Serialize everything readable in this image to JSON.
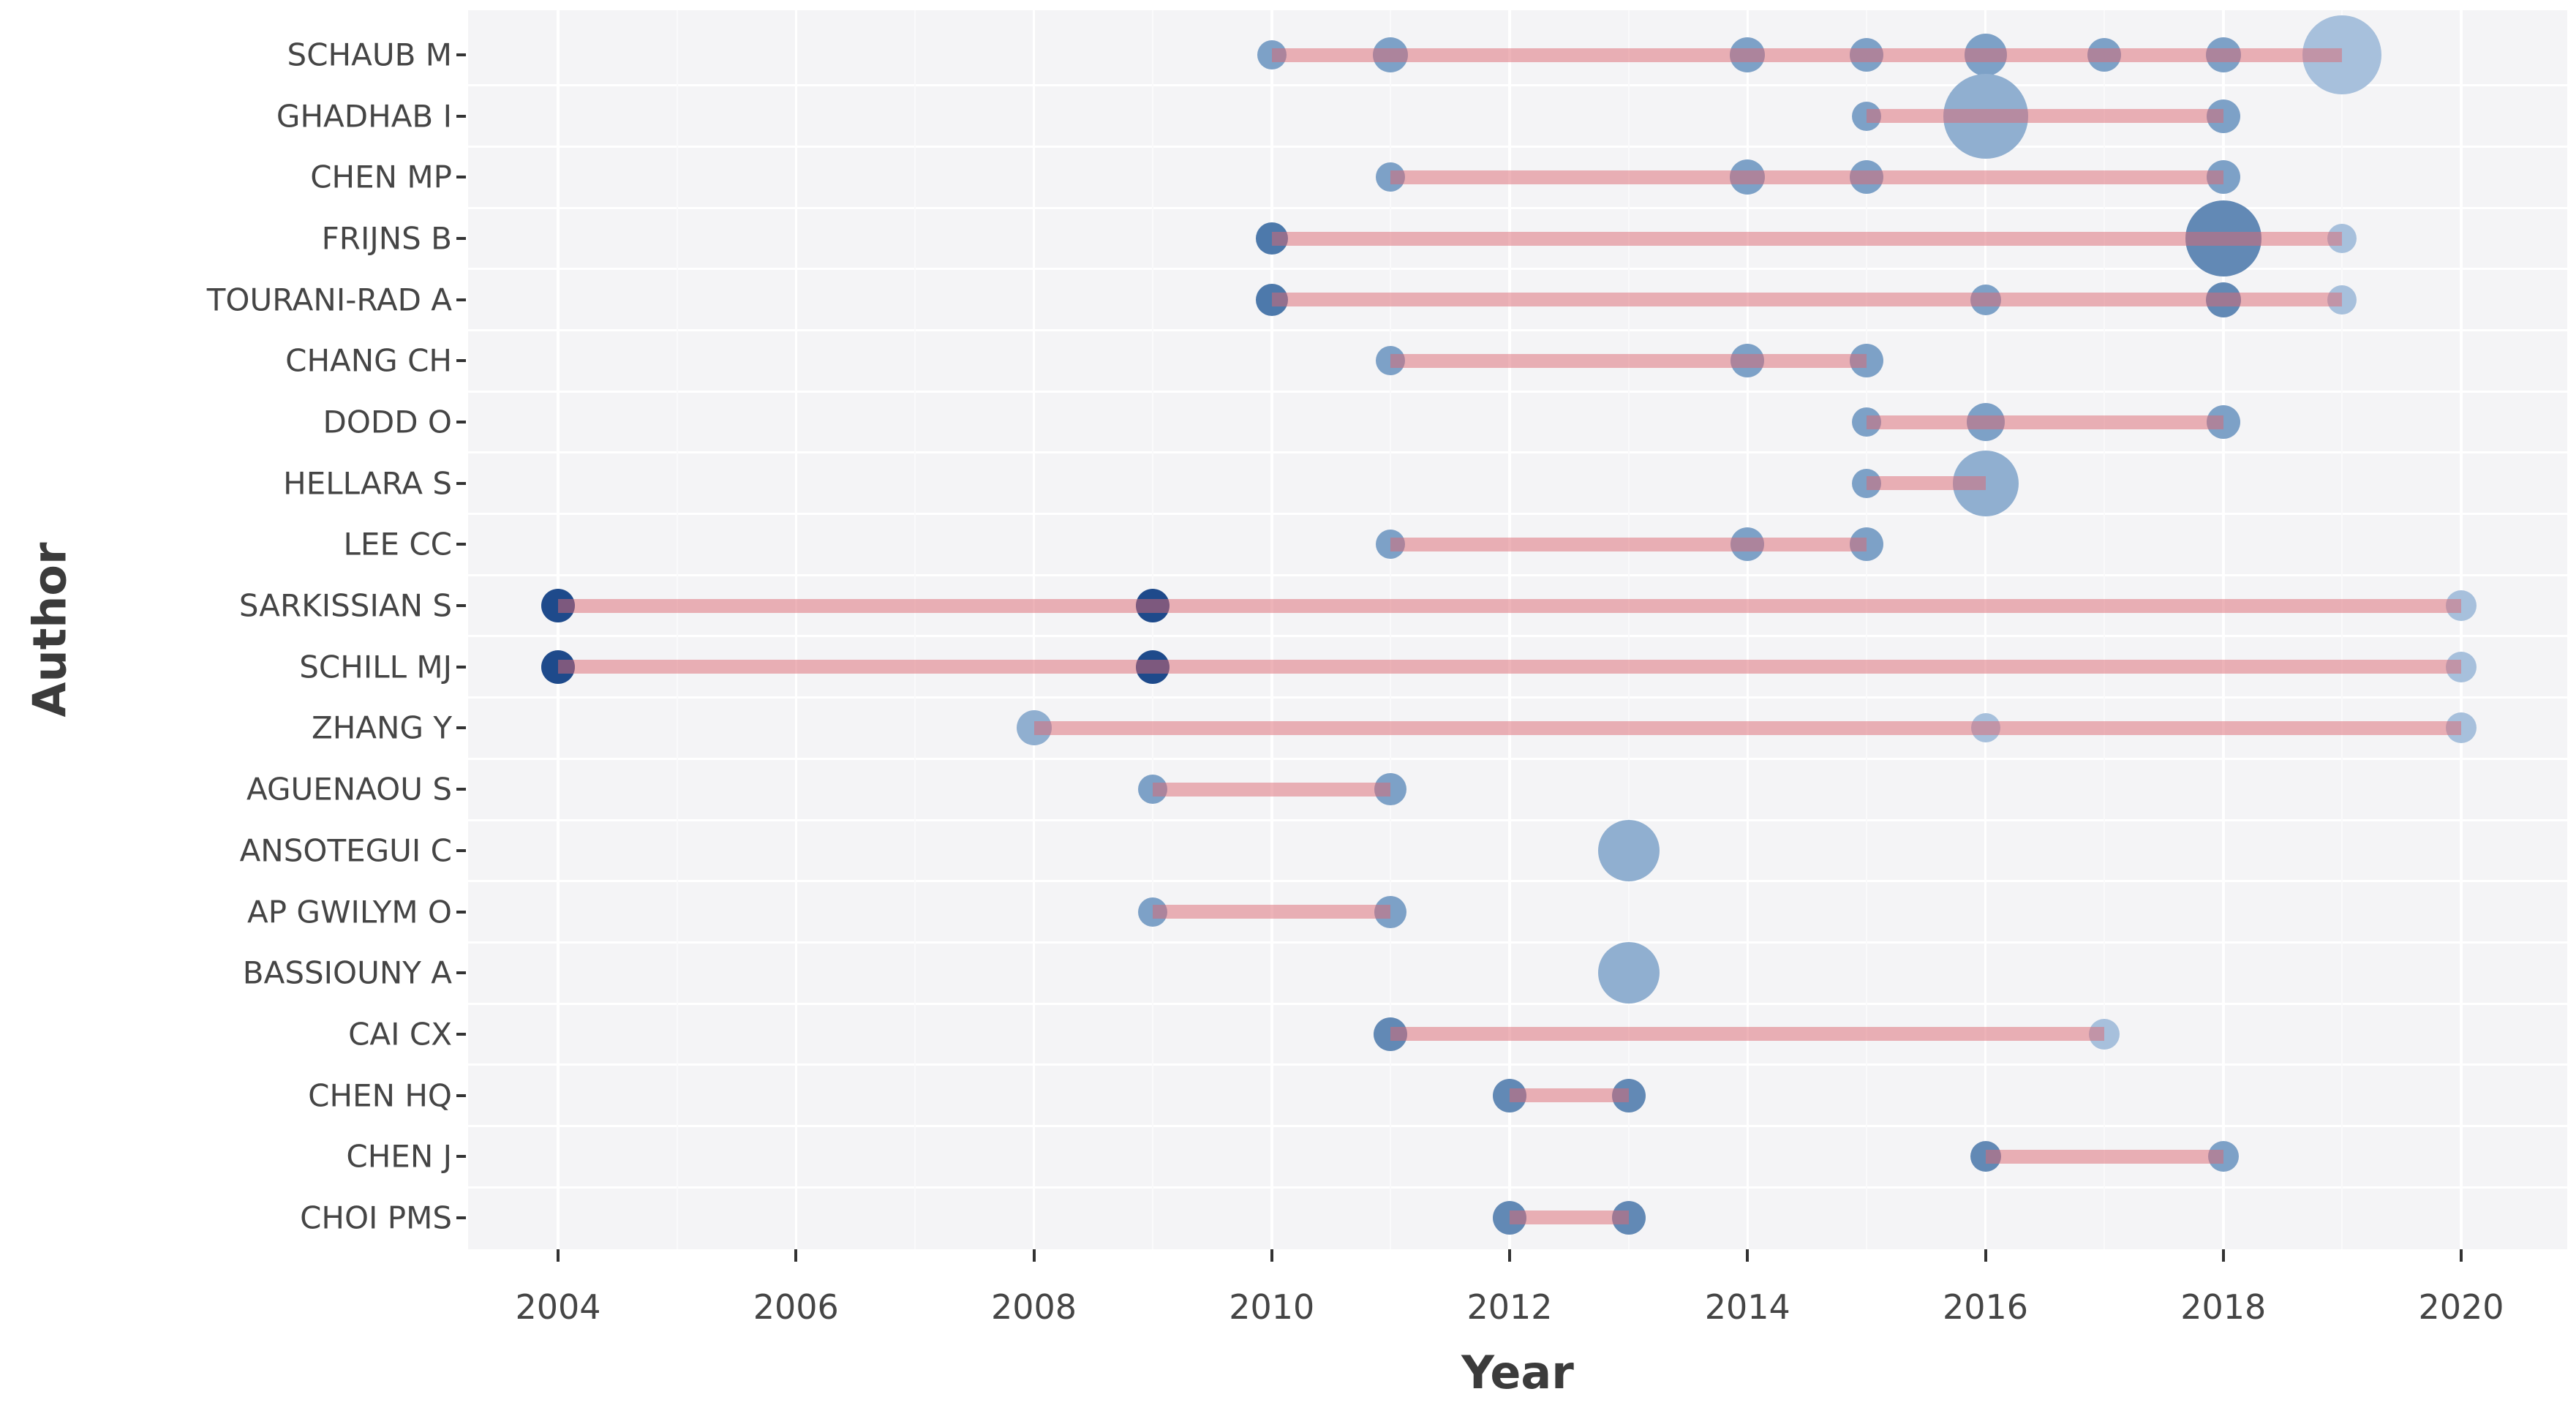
{
  "chart_data": {
    "type": "scatter",
    "subtype": "authors-production-over-time-timeline",
    "xlabel": "Year",
    "ylabel": "Author",
    "x_ticks": [
      2004,
      2006,
      2008,
      2010,
      2012,
      2014,
      2016,
      2018,
      2020
    ],
    "x_minor_ticks": [
      2005,
      2007,
      2009,
      2011,
      2013,
      2015,
      2017,
      2019
    ],
    "x_range": [
      2003.25,
      2020.9
    ],
    "grid": true,
    "legend": "none",
    "panel_bg": "#f4f4f6",
    "line_color_rgba": "rgba(219,104,114,0.50)",
    "palette": {
      "navy": "#1e4a8b",
      "middark": "#4d79ab",
      "medium": "#6289b5",
      "steel": "#7da1c7",
      "light": "#90afd0",
      "xlight": "#a7c0dc"
    },
    "authors": [
      {
        "name": "SCHAUB M",
        "line": [
          2010,
          2019
        ],
        "dots": [
          {
            "year": 2010,
            "r": 20,
            "c": "steel"
          },
          {
            "year": 2011,
            "r": 24,
            "c": "steel"
          },
          {
            "year": 2014,
            "r": 24,
            "c": "steel"
          },
          {
            "year": 2015,
            "r": 23,
            "c": "steel"
          },
          {
            "year": 2016,
            "r": 29,
            "c": "steel"
          },
          {
            "year": 2017,
            "r": 23,
            "c": "steel"
          },
          {
            "year": 2018,
            "r": 24,
            "c": "steel"
          },
          {
            "year": 2019,
            "r": 54,
            "c": "xlight"
          }
        ]
      },
      {
        "name": "GHADHAB I",
        "line": [
          2015,
          2018
        ],
        "dots": [
          {
            "year": 2015,
            "r": 20,
            "c": "steel"
          },
          {
            "year": 2016,
            "r": 58,
            "c": "light"
          },
          {
            "year": 2018,
            "r": 23,
            "c": "steel"
          }
        ]
      },
      {
        "name": "CHEN MP",
        "line": [
          2011,
          2018
        ],
        "dots": [
          {
            "year": 2011,
            "r": 20,
            "c": "steel"
          },
          {
            "year": 2014,
            "r": 24,
            "c": "steel"
          },
          {
            "year": 2015,
            "r": 23,
            "c": "steel"
          },
          {
            "year": 2018,
            "r": 23,
            "c": "steel"
          }
        ]
      },
      {
        "name": "FRIJNS B",
        "line": [
          2010,
          2019
        ],
        "dots": [
          {
            "year": 2010,
            "r": 22,
            "c": "middark"
          },
          {
            "year": 2018,
            "r": 52,
            "c": "medium"
          },
          {
            "year": 2019,
            "r": 20,
            "c": "xlight"
          }
        ]
      },
      {
        "name": "TOURANI-RAD A",
        "line": [
          2010,
          2019
        ],
        "dots": [
          {
            "year": 2010,
            "r": 22,
            "c": "middark"
          },
          {
            "year": 2016,
            "r": 21,
            "c": "steel"
          },
          {
            "year": 2018,
            "r": 24,
            "c": "medium"
          },
          {
            "year": 2019,
            "r": 20,
            "c": "xlight"
          }
        ]
      },
      {
        "name": "CHANG CH",
        "line": [
          2011,
          2015
        ],
        "dots": [
          {
            "year": 2011,
            "r": 20,
            "c": "steel"
          },
          {
            "year": 2014,
            "r": 23,
            "c": "steel"
          },
          {
            "year": 2015,
            "r": 23,
            "c": "steel"
          }
        ]
      },
      {
        "name": "DODD O",
        "line": [
          2015,
          2018
        ],
        "dots": [
          {
            "year": 2015,
            "r": 20,
            "c": "steel"
          },
          {
            "year": 2016,
            "r": 26,
            "c": "steel"
          },
          {
            "year": 2018,
            "r": 23,
            "c": "steel"
          }
        ]
      },
      {
        "name": "HELLARA S",
        "line": [
          2015,
          2016
        ],
        "dots": [
          {
            "year": 2015,
            "r": 20,
            "c": "steel"
          },
          {
            "year": 2016,
            "r": 45,
            "c": "light"
          }
        ]
      },
      {
        "name": "LEE CC",
        "line": [
          2011,
          2015
        ],
        "dots": [
          {
            "year": 2011,
            "r": 20,
            "c": "steel"
          },
          {
            "year": 2014,
            "r": 23,
            "c": "steel"
          },
          {
            "year": 2015,
            "r": 23,
            "c": "steel"
          }
        ]
      },
      {
        "name": "SARKISSIAN S",
        "line": [
          2004,
          2020
        ],
        "dots": [
          {
            "year": 2004,
            "r": 23,
            "c": "navy"
          },
          {
            "year": 2009,
            "r": 23,
            "c": "navy"
          },
          {
            "year": 2020,
            "r": 21,
            "c": "xlight"
          }
        ]
      },
      {
        "name": "SCHILL MJ",
        "line": [
          2004,
          2020
        ],
        "dots": [
          {
            "year": 2004,
            "r": 23,
            "c": "navy"
          },
          {
            "year": 2009,
            "r": 23,
            "c": "navy"
          },
          {
            "year": 2020,
            "r": 21,
            "c": "xlight"
          }
        ]
      },
      {
        "name": "ZHANG Y",
        "line": [
          2008,
          2020
        ],
        "dots": [
          {
            "year": 2008,
            "r": 24,
            "c": "light"
          },
          {
            "year": 2016,
            "r": 20,
            "c": "xlight"
          },
          {
            "year": 2020,
            "r": 21,
            "c": "xlight"
          }
        ]
      },
      {
        "name": "AGUENAOU S",
        "line": [
          2009,
          2011
        ],
        "dots": [
          {
            "year": 2009,
            "r": 20,
            "c": "steel"
          },
          {
            "year": 2011,
            "r": 22,
            "c": "steel"
          }
        ]
      },
      {
        "name": "ANSOTEGUI C",
        "line": null,
        "dots": [
          {
            "year": 2013,
            "r": 42,
            "c": "light"
          }
        ]
      },
      {
        "name": "AP GWILYM O",
        "line": [
          2009,
          2011
        ],
        "dots": [
          {
            "year": 2009,
            "r": 20,
            "c": "steel"
          },
          {
            "year": 2011,
            "r": 22,
            "c": "steel"
          }
        ]
      },
      {
        "name": "BASSIOUNY A",
        "line": null,
        "dots": [
          {
            "year": 2013,
            "r": 42,
            "c": "light"
          }
        ]
      },
      {
        "name": "CAI CX",
        "line": [
          2011,
          2017
        ],
        "dots": [
          {
            "year": 2011,
            "r": 23,
            "c": "medium"
          },
          {
            "year": 2017,
            "r": 21,
            "c": "xlight"
          }
        ]
      },
      {
        "name": "CHEN HQ",
        "line": [
          2012,
          2013
        ],
        "dots": [
          {
            "year": 2012,
            "r": 23,
            "c": "medium"
          },
          {
            "year": 2013,
            "r": 23,
            "c": "medium"
          }
        ]
      },
      {
        "name": "CHEN J",
        "line": [
          2016,
          2018
        ],
        "dots": [
          {
            "year": 2016,
            "r": 21,
            "c": "medium"
          },
          {
            "year": 2018,
            "r": 21,
            "c": "steel"
          }
        ]
      },
      {
        "name": "CHOI PMS",
        "line": [
          2012,
          2013
        ],
        "dots": [
          {
            "year": 2012,
            "r": 23,
            "c": "medium"
          },
          {
            "year": 2013,
            "r": 23,
            "c": "medium"
          }
        ]
      }
    ]
  }
}
